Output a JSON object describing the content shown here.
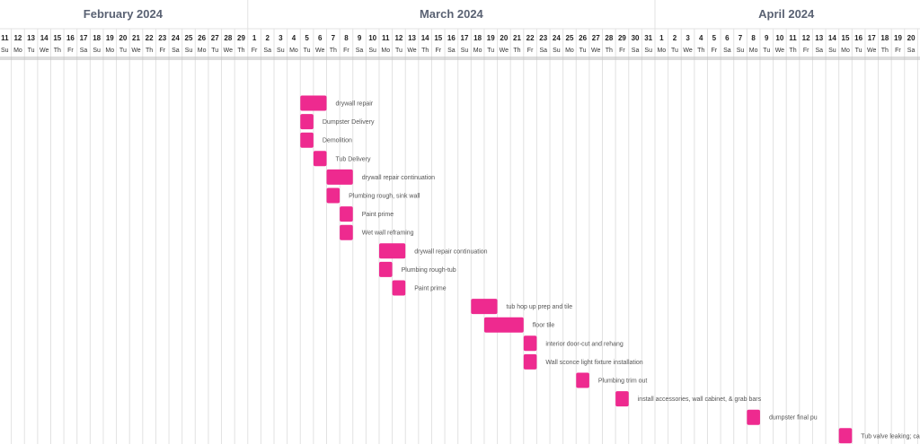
{
  "chart_data": {
    "type": "gantt",
    "months": [
      {
        "label": "February 2024",
        "start_day": 0,
        "days": 19
      },
      {
        "label": "March 2024",
        "start_day": 19,
        "days": 31
      },
      {
        "label": "April 2024",
        "start_day": 50,
        "days": 20
      }
    ],
    "days": [
      {
        "num": "11",
        "dow": "Su"
      },
      {
        "num": "12",
        "dow": "Mo"
      },
      {
        "num": "13",
        "dow": "Tu"
      },
      {
        "num": "14",
        "dow": "We"
      },
      {
        "num": "15",
        "dow": "Th"
      },
      {
        "num": "16",
        "dow": "Fr"
      },
      {
        "num": "17",
        "dow": "Sa"
      },
      {
        "num": "18",
        "dow": "Su"
      },
      {
        "num": "19",
        "dow": "Mo"
      },
      {
        "num": "20",
        "dow": "Tu"
      },
      {
        "num": "21",
        "dow": "We"
      },
      {
        "num": "22",
        "dow": "Th"
      },
      {
        "num": "23",
        "dow": "Fr"
      },
      {
        "num": "24",
        "dow": "Sa"
      },
      {
        "num": "25",
        "dow": "Su"
      },
      {
        "num": "26",
        "dow": "Mo"
      },
      {
        "num": "27",
        "dow": "Tu"
      },
      {
        "num": "28",
        "dow": "We"
      },
      {
        "num": "29",
        "dow": "Th"
      },
      {
        "num": "1",
        "dow": "Fr"
      },
      {
        "num": "2",
        "dow": "Sa"
      },
      {
        "num": "3",
        "dow": "Su"
      },
      {
        "num": "4",
        "dow": "Mo"
      },
      {
        "num": "5",
        "dow": "Tu"
      },
      {
        "num": "6",
        "dow": "We"
      },
      {
        "num": "7",
        "dow": "Th"
      },
      {
        "num": "8",
        "dow": "Fr"
      },
      {
        "num": "9",
        "dow": "Sa"
      },
      {
        "num": "10",
        "dow": "Su"
      },
      {
        "num": "11",
        "dow": "Mo"
      },
      {
        "num": "12",
        "dow": "Tu"
      },
      {
        "num": "13",
        "dow": "We"
      },
      {
        "num": "14",
        "dow": "Th"
      },
      {
        "num": "15",
        "dow": "Fr"
      },
      {
        "num": "16",
        "dow": "Sa"
      },
      {
        "num": "17",
        "dow": "Su"
      },
      {
        "num": "18",
        "dow": "Mo"
      },
      {
        "num": "19",
        "dow": "Tu"
      },
      {
        "num": "20",
        "dow": "We"
      },
      {
        "num": "21",
        "dow": "Th"
      },
      {
        "num": "22",
        "dow": "Fr"
      },
      {
        "num": "23",
        "dow": "Sa"
      },
      {
        "num": "24",
        "dow": "Su"
      },
      {
        "num": "25",
        "dow": "Mo"
      },
      {
        "num": "26",
        "dow": "Tu"
      },
      {
        "num": "27",
        "dow": "We"
      },
      {
        "num": "28",
        "dow": "Th"
      },
      {
        "num": "29",
        "dow": "Fr"
      },
      {
        "num": "30",
        "dow": "Sa"
      },
      {
        "num": "31",
        "dow": "Su"
      },
      {
        "num": "1",
        "dow": "Mo"
      },
      {
        "num": "2",
        "dow": "Tu"
      },
      {
        "num": "3",
        "dow": "We"
      },
      {
        "num": "4",
        "dow": "Th"
      },
      {
        "num": "5",
        "dow": "Fr"
      },
      {
        "num": "6",
        "dow": "Sa"
      },
      {
        "num": "7",
        "dow": "Su"
      },
      {
        "num": "8",
        "dow": "Mo"
      },
      {
        "num": "9",
        "dow": "Tu"
      },
      {
        "num": "10",
        "dow": "We"
      },
      {
        "num": "11",
        "dow": "Th"
      },
      {
        "num": "12",
        "dow": "Fr"
      },
      {
        "num": "13",
        "dow": "Sa"
      },
      {
        "num": "14",
        "dow": "Su"
      },
      {
        "num": "15",
        "dow": "Mo"
      },
      {
        "num": "16",
        "dow": "Tu"
      },
      {
        "num": "17",
        "dow": "We"
      },
      {
        "num": "18",
        "dow": "Th"
      },
      {
        "num": "19",
        "dow": "Fr"
      },
      {
        "num": "20",
        "dow": "Sa"
      }
    ],
    "tasks": [
      {
        "name": "drywall repair",
        "start": "2024-03-05",
        "end": "2024-03-06"
      },
      {
        "name": "Dumpster Delivery",
        "start": "2024-03-05",
        "end": "2024-03-05"
      },
      {
        "name": "Demolition",
        "start": "2024-03-05",
        "end": "2024-03-05"
      },
      {
        "name": "Tub Delivery",
        "start": "2024-03-06",
        "end": "2024-03-06"
      },
      {
        "name": "drywall repair continuation",
        "start": "2024-03-07",
        "end": "2024-03-08"
      },
      {
        "name": "Plumbing rough, sink wall",
        "start": "2024-03-07",
        "end": "2024-03-07"
      },
      {
        "name": "Paint prime",
        "start": "2024-03-08",
        "end": "2024-03-08"
      },
      {
        "name": "Wet wall reframing",
        "start": "2024-03-08",
        "end": "2024-03-08"
      },
      {
        "name": "drywall repair continuation",
        "start": "2024-03-11",
        "end": "2024-03-12"
      },
      {
        "name": "Plumbing rough-tub",
        "start": "2024-03-11",
        "end": "2024-03-11"
      },
      {
        "name": "Paint prime",
        "start": "2024-03-12",
        "end": "2024-03-12"
      },
      {
        "name": "tub hop up prep and tile",
        "start": "2024-03-18",
        "end": "2024-03-19"
      },
      {
        "name": "floor tile",
        "start": "2024-03-19",
        "end": "2024-03-21"
      },
      {
        "name": "interior door-cut and rehang",
        "start": "2024-03-22",
        "end": "2024-03-22"
      },
      {
        "name": "Wall sconce light fixture installation",
        "start": "2024-03-22",
        "end": "2024-03-22"
      },
      {
        "name": "Plumbing trim out",
        "start": "2024-03-26",
        "end": "2024-03-26"
      },
      {
        "name": "install accessories, wall cabinet, & grab bars",
        "start": "2024-03-29",
        "end": "2024-03-29"
      },
      {
        "name": "dumpster final pu",
        "start": "2024-04-08",
        "end": "2024-04-08"
      },
      {
        "name": "Tub valve leaking; cartridge?",
        "start": "2024-04-15",
        "end": "2024-04-15"
      }
    ],
    "colors": {
      "bar": "#ee2a8f",
      "month_text": "#5a6273",
      "grid": "#e2e2e2",
      "header_line": "#bbbbbb"
    }
  }
}
